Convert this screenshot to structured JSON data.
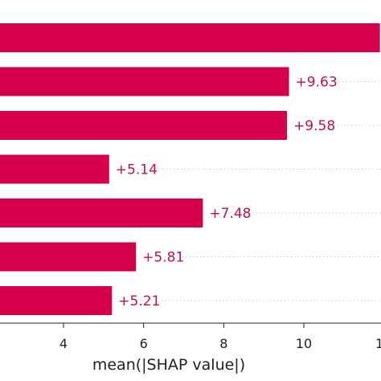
{
  "chart_data": {
    "type": "bar",
    "orientation": "horizontal",
    "title": "",
    "xlabel": "mean(|SHAP value|)",
    "ylabel": "",
    "xlim": [
      1.6,
      11.9
    ],
    "xticks": [
      4,
      6,
      8,
      10
    ],
    "tick_labels": [
      "4",
      "6",
      "8",
      "10"
    ],
    "partial_tick_label": "1",
    "bars": [
      {
        "value": 11.9,
        "label": ""
      },
      {
        "value": 9.63,
        "label": "+9.63"
      },
      {
        "value": 9.58,
        "label": "+9.58"
      },
      {
        "value": 5.14,
        "label": "+5.14"
      },
      {
        "value": 7.48,
        "label": "+7.48"
      },
      {
        "value": 5.81,
        "label": "+5.81"
      },
      {
        "value": 5.21,
        "label": "+5.21"
      }
    ],
    "bar_color": "#d6004d",
    "label_color": "#c0104a",
    "grid": "dotted horizontal guides"
  }
}
